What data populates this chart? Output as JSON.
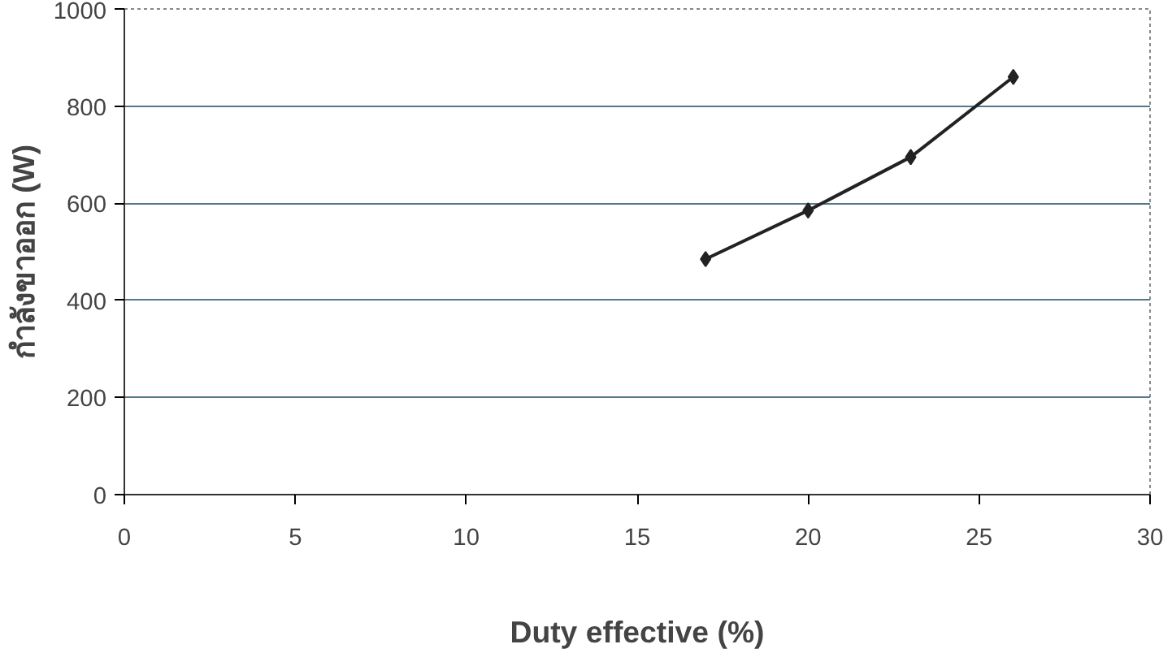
{
  "chart_data": {
    "type": "line",
    "xlabel": "Duty effective (%)",
    "ylabel": "กำลังขาออก (W)",
    "x": [
      17,
      20,
      23,
      26
    ],
    "series": [
      {
        "color": "#222222",
        "values": [
          485,
          585,
          695,
          860
        ]
      }
    ],
    "xlim": [
      0,
      30
    ],
    "xticks": [
      0,
      5,
      10,
      15,
      20,
      25,
      30
    ],
    "ylim": [
      0,
      1000
    ],
    "yticks": [
      0,
      200,
      400,
      600,
      800,
      1000
    ],
    "grid": "y",
    "marker": "diamond",
    "line_style": "solid"
  }
}
